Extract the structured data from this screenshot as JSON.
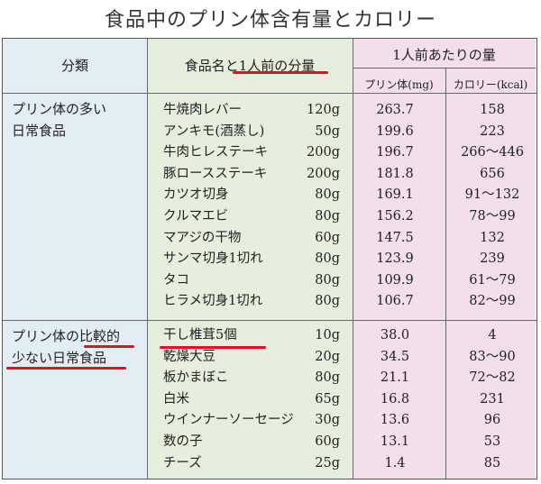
{
  "title": "食品中のプリン体含有量とカロリー",
  "headers": {
    "category": "分類",
    "food_portion": "食品名と1人前の分量",
    "per_serving": "1人前あたりの量",
    "purine": "プリン体(mg)",
    "calorie": "カロリー(kcal)"
  },
  "groups": [
    {
      "category_lines": [
        "プリン体の多い",
        "日常食品"
      ],
      "rows": [
        {
          "food": "牛焼肉レバー",
          "portion": "120g",
          "purine": "263.7",
          "kcal": "158"
        },
        {
          "food": "アンキモ(酒蒸し)",
          "portion": "50g",
          "purine": "199.6",
          "kcal": "223"
        },
        {
          "food": "牛肉ヒレステーキ",
          "portion": "200g",
          "purine": "196.7",
          "kcal": "266〜446"
        },
        {
          "food": "豚ロースステーキ",
          "portion": "200g",
          "purine": "181.8",
          "kcal": "656"
        },
        {
          "food": "カツオ切身",
          "portion": "80g",
          "purine": "169.1",
          "kcal": "91〜132"
        },
        {
          "food": "クルマエビ",
          "portion": "80g",
          "purine": "156.2",
          "kcal": "78〜99"
        },
        {
          "food": "マアジの干物",
          "portion": "60g",
          "purine": "147.5",
          "kcal": "132"
        },
        {
          "food": "サンマ切身1切れ",
          "portion": "80g",
          "purine": "123.9",
          "kcal": "239"
        },
        {
          "food": "タコ",
          "portion": "80g",
          "purine": "109.9",
          "kcal": "61〜79"
        },
        {
          "food": "ヒラメ切身1切れ",
          "portion": "80g",
          "purine": "106.7",
          "kcal": "82〜99"
        }
      ]
    },
    {
      "category_lines": [
        "プリン体の比較的",
        "少ない日常食品"
      ],
      "rows": [
        {
          "food": "干し椎茸5個",
          "portion": "10g",
          "purine": "38.0",
          "kcal": "4"
        },
        {
          "food": "乾燥大豆",
          "portion": "20g",
          "purine": "34.5",
          "kcal": "83〜90"
        },
        {
          "food": "板かまぼこ",
          "portion": "80g",
          "purine": "21.1",
          "kcal": "72〜82"
        },
        {
          "food": "白米",
          "portion": "65g",
          "purine": "16.8",
          "kcal": "231"
        },
        {
          "food": "ウインナーソーセージ",
          "portion": "30g",
          "purine": "13.6",
          "kcal": "96"
        },
        {
          "food": "数の子",
          "portion": "60g",
          "purine": "13.1",
          "kcal": "53"
        },
        {
          "food": "チーズ",
          "portion": "25g",
          "purine": "1.4",
          "kcal": "85"
        }
      ]
    }
  ],
  "colors": {
    "category_bg": "#e2eef4",
    "food_bg": "#e6efdd",
    "amount_bg": "#f3dfe9",
    "underline": "#e0102a"
  }
}
